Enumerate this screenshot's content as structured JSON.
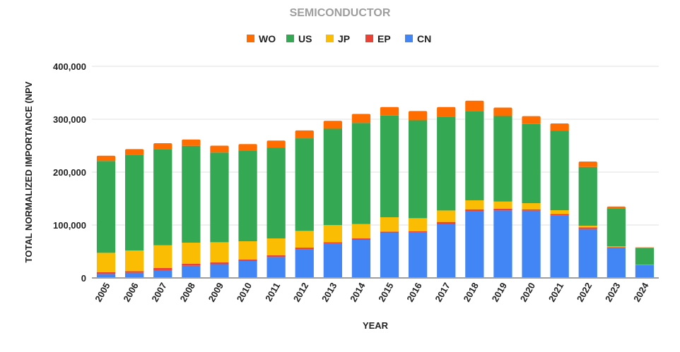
{
  "chart_data": {
    "type": "bar",
    "stacked": true,
    "title": "SEMICONDUCTOR",
    "xlabel": "YEAR",
    "ylabel": "TOTAL NORMALIZED IMPORTANCE (NPV",
    "ylim": [
      0,
      400000
    ],
    "yticks": [
      0,
      100000,
      200000,
      300000,
      400000
    ],
    "ytick_labels": [
      "0",
      "100,000",
      "200,000",
      "300,000",
      "400,000"
    ],
    "grid": true,
    "legend_position": "top",
    "legend_order": [
      "WO",
      "US",
      "JP",
      "EP",
      "CN"
    ],
    "categories": [
      "2005",
      "2006",
      "2007",
      "2008",
      "2009",
      "2010",
      "2011",
      "2012",
      "2013",
      "2014",
      "2015",
      "2016",
      "2017",
      "2018",
      "2019",
      "2020",
      "2021",
      "2022",
      "2023",
      "2024"
    ],
    "series": [
      {
        "name": "CN",
        "color": "#4285f4",
        "values": [
          7500,
          9800,
          14700,
          23000,
          26000,
          32000,
          39500,
          53800,
          64900,
          72000,
          85300,
          85800,
          102000,
          126700,
          127500,
          127100,
          118200,
          92400,
          57300,
          24400
        ]
      },
      {
        "name": "EP",
        "color": "#ea4335",
        "values": [
          3200,
          3000,
          4000,
          3700,
          3300,
          2700,
          3200,
          3500,
          2600,
          2700,
          2300,
          2600,
          3800,
          3000,
          3200,
          2600,
          2700,
          3200,
          800,
          300
        ]
      },
      {
        "name": "JP",
        "color": "#fbbc04",
        "values": [
          36800,
          39200,
          43000,
          40000,
          38200,
          34600,
          32000,
          31600,
          32500,
          27300,
          27100,
          24500,
          21700,
          17000,
          13700,
          11600,
          7100,
          3100,
          1500,
          300
        ]
      },
      {
        "name": "US",
        "color": "#34a853",
        "values": [
          173500,
          181000,
          182000,
          183000,
          169500,
          170700,
          171300,
          175000,
          182000,
          191000,
          192300,
          185100,
          177500,
          168800,
          161600,
          149700,
          150000,
          111000,
          71100,
          31400
        ]
      },
      {
        "name": "WO",
        "color": "#ff6d01",
        "values": [
          10000,
          10500,
          11000,
          12000,
          13000,
          13000,
          13600,
          15000,
          15000,
          17000,
          16000,
          17500,
          18000,
          19500,
          16000,
          14800,
          14000,
          10300,
          4300,
          1400
        ]
      }
    ]
  }
}
